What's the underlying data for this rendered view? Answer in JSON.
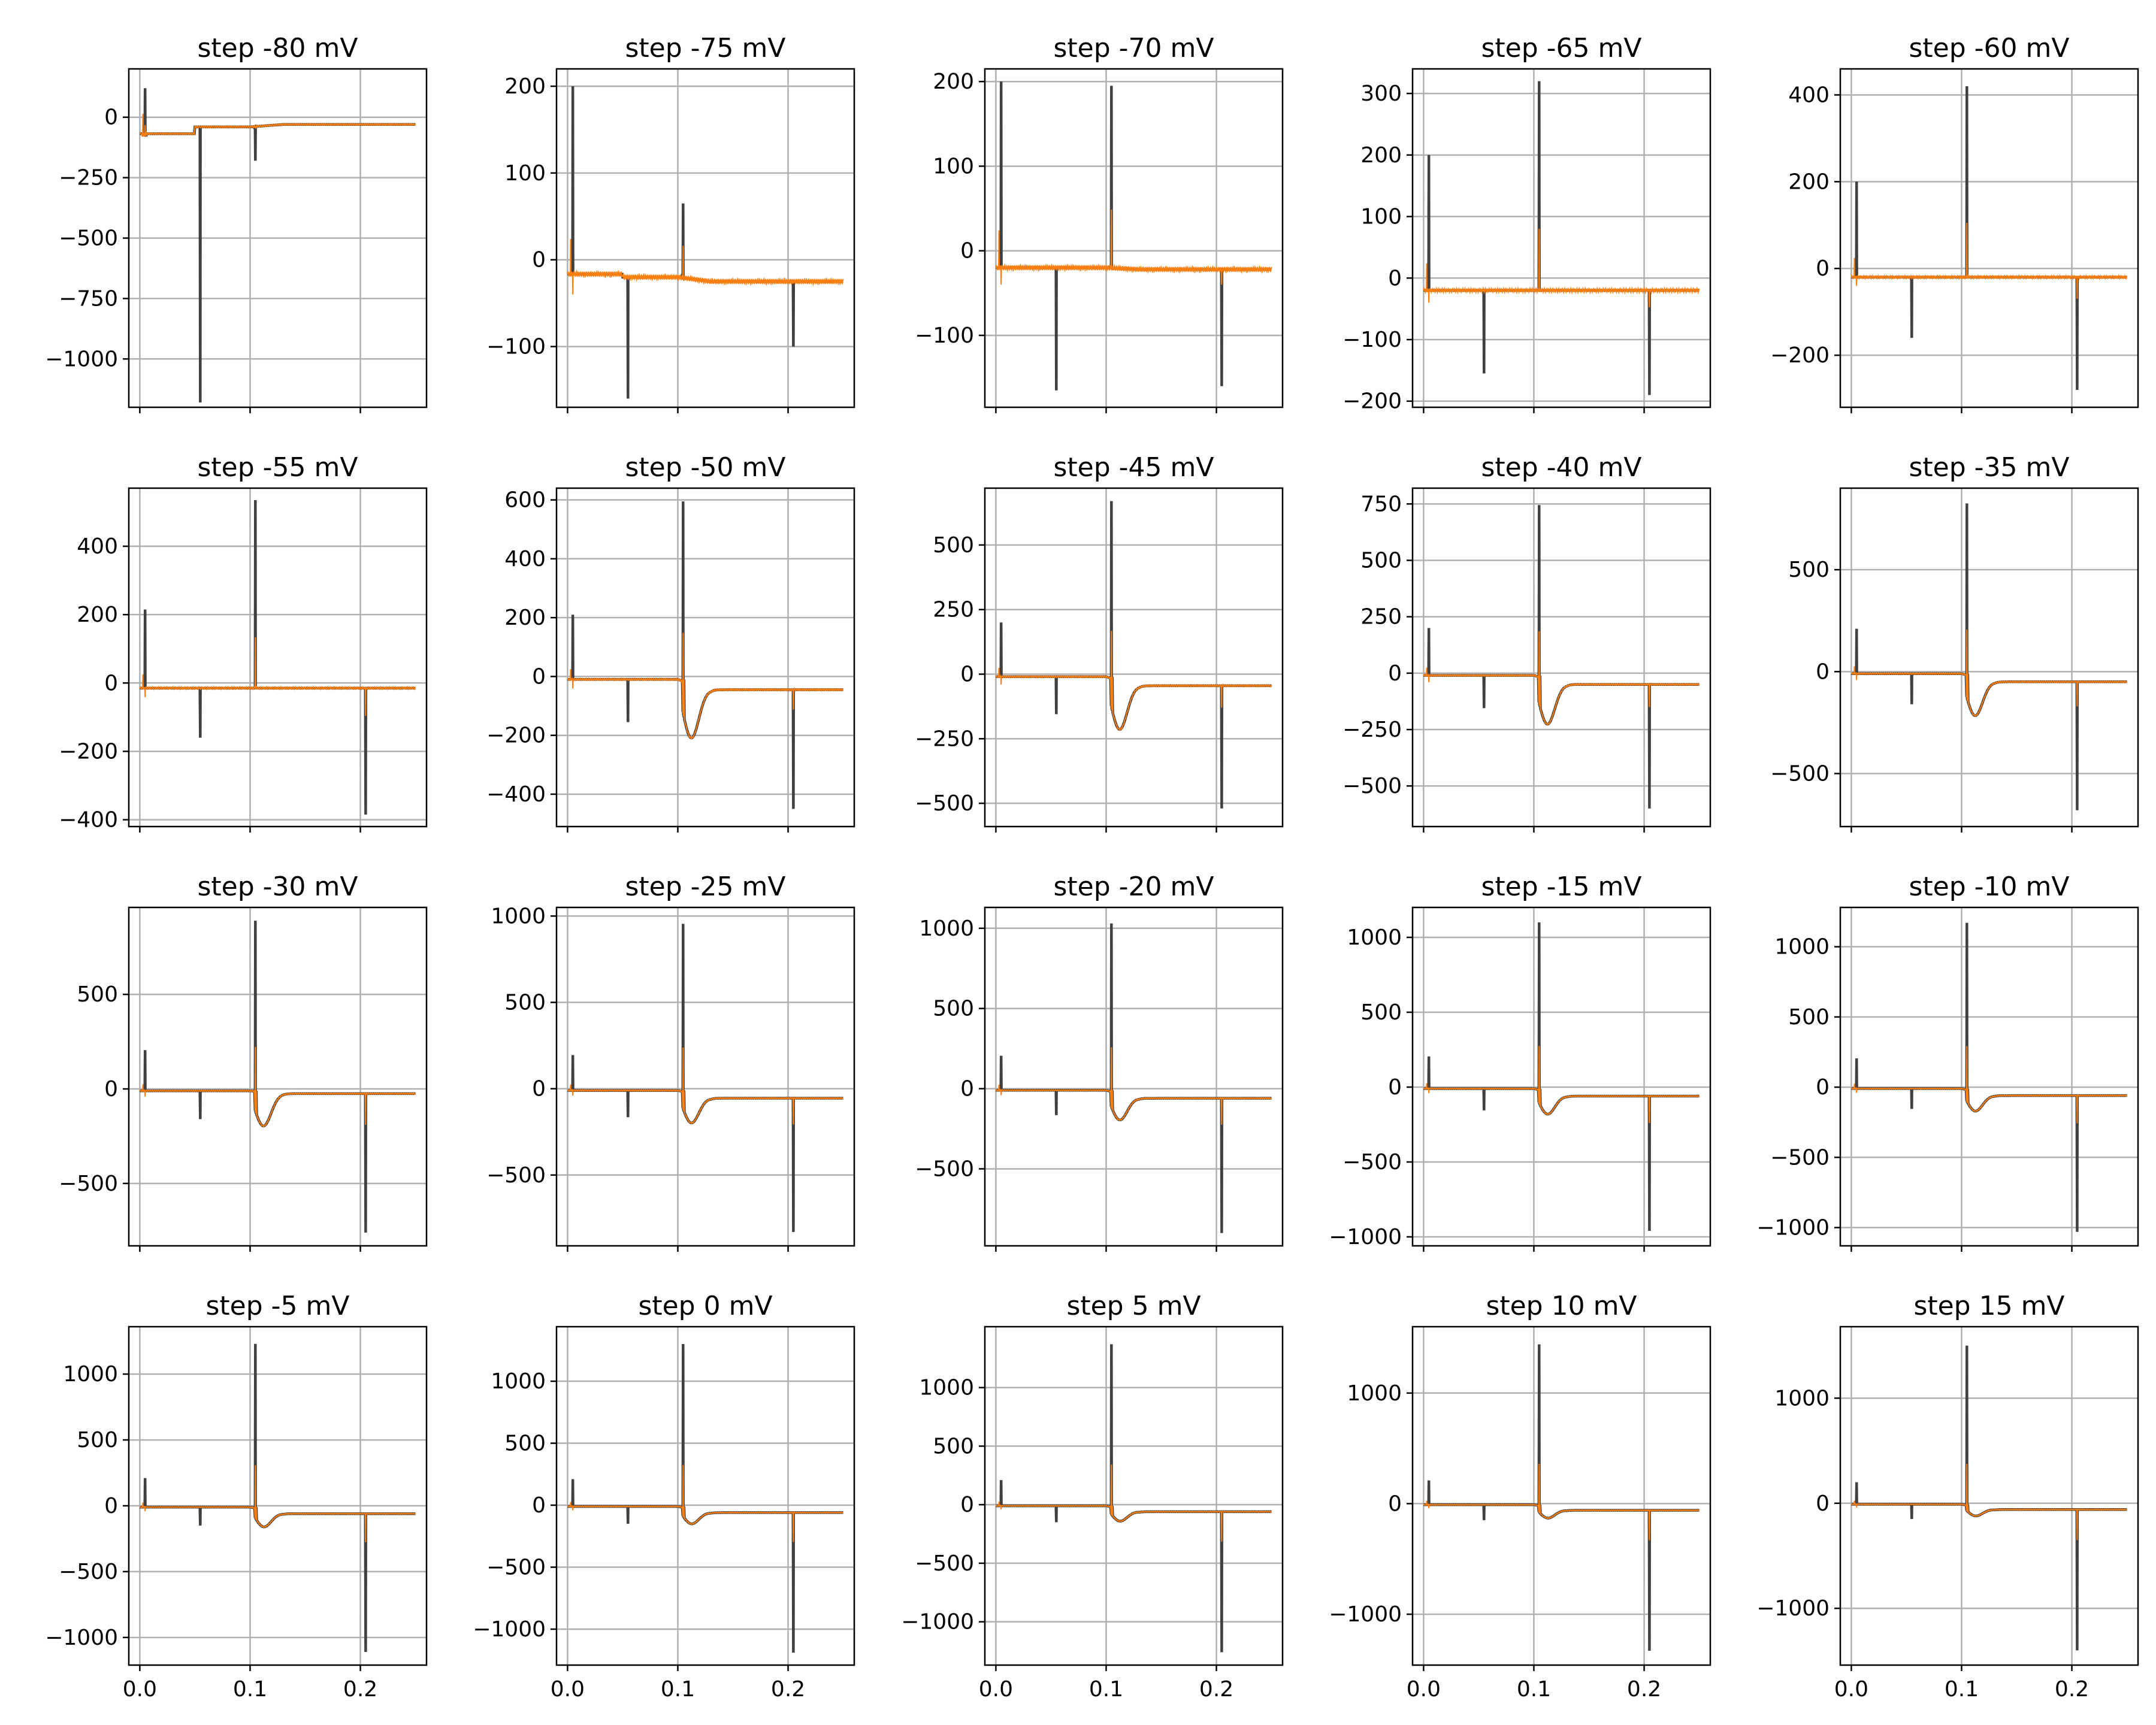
{
  "chart_data": {
    "type": "line",
    "shared_x": true,
    "grid": true,
    "x_ticks": [
      0.0,
      0.1,
      0.2
    ],
    "x_tick_labels": [
      "0.0",
      "0.1",
      "0.2"
    ],
    "xlim": [
      -0.01,
      0.26
    ],
    "series_colors": {
      "dark": "#404040",
      "orange": "#ff7f0e"
    },
    "panels": [
      {
        "title": "step -80 mV",
        "step": -80,
        "ylim": [
          -1200,
          200
        ],
        "yticks": [
          0,
          -250,
          -500,
          -750,
          -1000
        ],
        "ytick_labels": [
          "0",
          "−250",
          "−500",
          "−750",
          "−1000"
        ],
        "base_hold": -80,
        "base_step": -40,
        "base_after": -30,
        "d0": 120,
        "d1": -1180,
        "d2": -180,
        "s1": 0,
        "s2": 0,
        "a": 0
      },
      {
        "title": "step -75 mV",
        "step": -75,
        "ylim": [
          -170,
          220
        ],
        "yticks": [
          200,
          100,
          0,
          -100
        ],
        "ytick_labels": [
          "200",
          "100",
          "0",
          "−100"
        ],
        "base_hold": -15,
        "base_step": -20,
        "base_after": -25,
        "d0": 200,
        "d1": -160,
        "d2": 65,
        "s1": -100,
        "s2": 0,
        "a": 0
      },
      {
        "title": "step -70 mV",
        "step": -70,
        "ylim": [
          -185,
          215
        ],
        "yticks": [
          200,
          100,
          0,
          -100
        ],
        "ytick_labels": [
          "200",
          "100",
          "0",
          "−100"
        ],
        "base_hold": -20,
        "base_step": -20,
        "base_after": -22,
        "d0": 200,
        "d1": -165,
        "d2": 195,
        "s1": -160,
        "s2": 0,
        "a": 0
      },
      {
        "title": "step -65 mV",
        "step": -65,
        "ylim": [
          -210,
          340
        ],
        "yticks": [
          300,
          200,
          100,
          0,
          -100,
          -200
        ],
        "ytick_labels": [
          "300",
          "200",
          "100",
          "0",
          "−100",
          "−200"
        ],
        "base_hold": -20,
        "base_step": -20,
        "base_after": -20,
        "d0": 200,
        "d1": -155,
        "d2": 320,
        "s1": -190,
        "s2": 0,
        "a": 0
      },
      {
        "title": "step -60 mV",
        "step": -60,
        "ylim": [
          -320,
          460
        ],
        "yticks": [
          400,
          200,
          0,
          -200
        ],
        "ytick_labels": [
          "400",
          "200",
          "0",
          "−200"
        ],
        "base_hold": -20,
        "base_step": -20,
        "base_after": -20,
        "d0": 200,
        "d1": -160,
        "d2": 420,
        "s1": -280,
        "s2": 0,
        "a": 0
      },
      {
        "title": "step -55 mV",
        "step": -55,
        "ylim": [
          -420,
          570
        ],
        "yticks": [
          400,
          200,
          0,
          -200,
          -400
        ],
        "ytick_labels": [
          "400",
          "200",
          "0",
          "−200",
          "−400"
        ],
        "base_hold": -15,
        "base_step": -15,
        "base_after": -15,
        "d0": 215,
        "d1": -160,
        "d2": 535,
        "s1": -385,
        "s2": 0,
        "a": 0
      },
      {
        "title": "step -50 mV",
        "step": -50,
        "ylim": [
          -510,
          640
        ],
        "yticks": [
          600,
          400,
          200,
          0,
          -200,
          -400
        ],
        "ytick_labels": [
          "600",
          "400",
          "200",
          "0",
          "−200",
          "−400"
        ],
        "base_hold": -10,
        "base_step": -10,
        "base_after": -45,
        "d0": 210,
        "d1": -155,
        "d2": 595,
        "s1": -450,
        "s2": 0,
        "a": -185
      },
      {
        "title": "step -45 mV",
        "step": -45,
        "ylim": [
          -590,
          720
        ],
        "yticks": [
          500,
          250,
          0,
          -250,
          -500
        ],
        "ytick_labels": [
          "500",
          "250",
          "0",
          "−250",
          "−500"
        ],
        "base_hold": -10,
        "base_step": -10,
        "base_after": -45,
        "d0": 200,
        "d1": -155,
        "d2": 670,
        "s1": -520,
        "s2": 0,
        "a": -190
      },
      {
        "title": "step -40 mV",
        "step": -40,
        "ylim": [
          -680,
          820
        ],
        "yticks": [
          750,
          500,
          250,
          0,
          -250,
          -500
        ],
        "ytick_labels": [
          "750",
          "500",
          "250",
          "0",
          "−250",
          "−500"
        ],
        "base_hold": -10,
        "base_step": -10,
        "base_after": -50,
        "d0": 200,
        "d1": -155,
        "d2": 745,
        "s1": -600,
        "s2": 0,
        "a": -200
      },
      {
        "title": "step -35 mV",
        "step": -35,
        "ylim": [
          -760,
          900
        ],
        "yticks": [
          500,
          0,
          -500
        ],
        "ytick_labels": [
          "500",
          "0",
          "−500"
        ],
        "base_hold": -10,
        "base_step": -10,
        "base_after": -50,
        "d0": 210,
        "d1": -160,
        "d2": 825,
        "s1": -680,
        "s2": 0,
        "a": -190
      },
      {
        "title": "step -30 mV",
        "step": -30,
        "ylim": [
          -830,
          960
        ],
        "yticks": [
          500,
          0,
          -500
        ],
        "ytick_labels": [
          "500",
          "0",
          "−500"
        ],
        "base_hold": -10,
        "base_step": -10,
        "base_after": -25,
        "d0": 205,
        "d1": -160,
        "d2": 890,
        "s1": -760,
        "s2": 0,
        "a": -180
      },
      {
        "title": "step -25 mV",
        "step": -25,
        "ylim": [
          -910,
          1050
        ],
        "yticks": [
          1000,
          500,
          0,
          -500
        ],
        "ytick_labels": [
          "1000",
          "500",
          "0",
          "−500"
        ],
        "base_hold": -10,
        "base_step": -10,
        "base_after": -55,
        "d0": 195,
        "d1": -165,
        "d2": 955,
        "s1": -830,
        "s2": 0,
        "a": -170
      },
      {
        "title": "step -20 mV",
        "step": -20,
        "ylim": [
          -980,
          1130
        ],
        "yticks": [
          1000,
          500,
          0,
          -500
        ],
        "ytick_labels": [
          "1000",
          "500",
          "0",
          "−500"
        ],
        "base_hold": -10,
        "base_step": -10,
        "base_after": -60,
        "d0": 205,
        "d1": -165,
        "d2": 1030,
        "s1": -900,
        "s2": 0,
        "a": -165
      },
      {
        "title": "step -15 mV",
        "step": -15,
        "ylim": [
          -1060,
          1200
        ],
        "yticks": [
          1000,
          500,
          0,
          -500,
          -1000
        ],
        "ytick_labels": [
          "1000",
          "500",
          "0",
          "−500",
          "−1000"
        ],
        "base_hold": -10,
        "base_step": -10,
        "base_after": -60,
        "d0": 205,
        "d1": -155,
        "d2": 1100,
        "s1": -960,
        "s2": 0,
        "a": -150
      },
      {
        "title": "step -10 mV",
        "step": -10,
        "ylim": [
          -1130,
          1280
        ],
        "yticks": [
          1000,
          500,
          0,
          -500,
          -1000
        ],
        "ytick_labels": [
          "1000",
          "500",
          "0",
          "−500",
          "−1000"
        ],
        "base_hold": -10,
        "base_step": -10,
        "base_after": -60,
        "d0": 205,
        "d1": -155,
        "d2": 1170,
        "s1": -1030,
        "s2": 0,
        "a": -140
      },
      {
        "title": "step -5 mV",
        "step": -5,
        "ylim": [
          -1210,
          1360
        ],
        "yticks": [
          1000,
          500,
          0,
          -500,
          -1000
        ],
        "ytick_labels": [
          "1000",
          "500",
          "0",
          "−500",
          "−1000"
        ],
        "base_hold": -10,
        "base_step": -10,
        "base_after": -60,
        "d0": 210,
        "d1": -150,
        "d2": 1230,
        "s1": -1110,
        "s2": 0,
        "a": -130
      },
      {
        "title": "step 0 mV",
        "step": 0,
        "ylim": [
          -1290,
          1440
        ],
        "yticks": [
          1000,
          500,
          0,
          -500,
          -1000
        ],
        "ytick_labels": [
          "1000",
          "500",
          "0",
          "−500",
          "−1000"
        ],
        "base_hold": -10,
        "base_step": -10,
        "base_after": -60,
        "d0": 210,
        "d1": -150,
        "d2": 1300,
        "s1": -1190,
        "s2": 0,
        "a": -120
      },
      {
        "title": "step 5 mV",
        "step": 5,
        "ylim": [
          -1370,
          1520
        ],
        "yticks": [
          1000,
          500,
          0,
          -500,
          -1000
        ],
        "ytick_labels": [
          "1000",
          "500",
          "0",
          "−500",
          "−1000"
        ],
        "base_hold": -10,
        "base_step": -10,
        "base_after": -60,
        "d0": 210,
        "d1": -150,
        "d2": 1370,
        "s1": -1260,
        "s2": 0,
        "a": -110
      },
      {
        "title": "step 10 mV",
        "step": 10,
        "ylim": [
          -1460,
          1600
        ],
        "yticks": [
          1000,
          0,
          -1000
        ],
        "ytick_labels": [
          "1000",
          "0",
          "−1000"
        ],
        "base_hold": -10,
        "base_step": -10,
        "base_after": -60,
        "d0": 210,
        "d1": -150,
        "d2": 1440,
        "s1": -1330,
        "s2": 0,
        "a": -100
      },
      {
        "title": "step 15 mV",
        "step": 15,
        "ylim": [
          -1540,
          1680
        ],
        "yticks": [
          1000,
          0,
          -1000
        ],
        "ytick_labels": [
          "1000",
          "0",
          "−1000"
        ],
        "base_hold": -10,
        "base_step": -10,
        "base_after": -60,
        "d0": 200,
        "d1": -150,
        "d2": 1500,
        "s1": -1400,
        "s2": 0,
        "a": -90
      }
    ]
  }
}
